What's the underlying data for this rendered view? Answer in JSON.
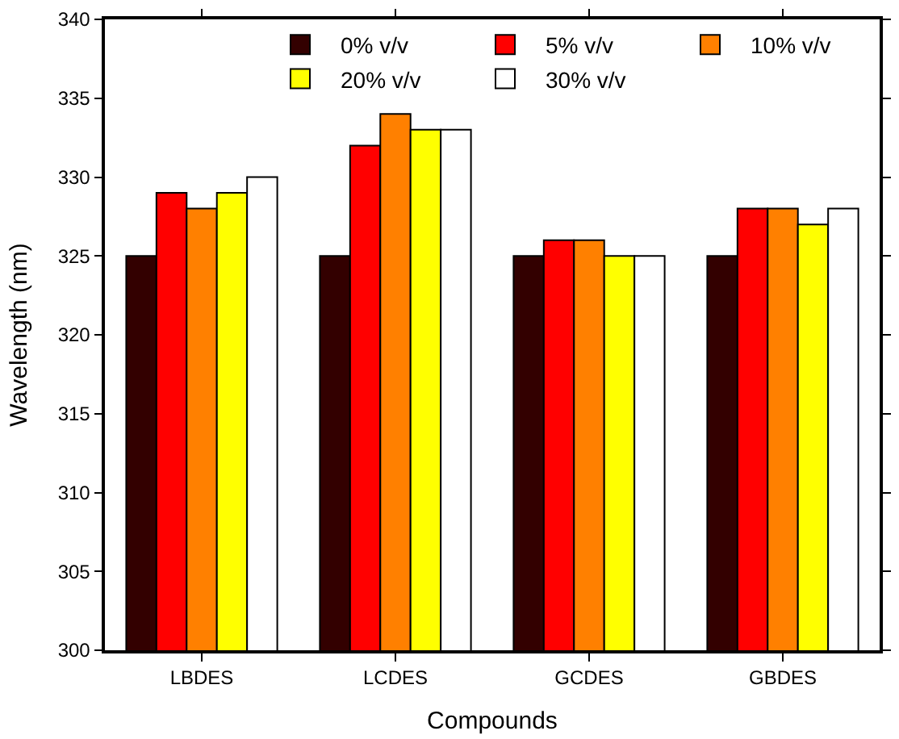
{
  "chart_data": {
    "type": "bar",
    "xlabel": "Compounds",
    "ylabel": "Wavelength (nm)",
    "categories": [
      "LBDES",
      "LCDES",
      "GCDES",
      "GBDES"
    ],
    "series": [
      {
        "name": "0% v/v",
        "color": "#330000",
        "values": [
          325,
          325,
          325,
          325
        ]
      },
      {
        "name": "5% v/v",
        "color": "#ff0000",
        "values": [
          329,
          332,
          326,
          328
        ]
      },
      {
        "name": "10% v/v",
        "color": "#ff8000",
        "values": [
          328,
          334,
          326,
          328
        ]
      },
      {
        "name": "20% v/v",
        "color": "#ffff00",
        "values": [
          329,
          333,
          325,
          327
        ]
      },
      {
        "name": "30% v/v",
        "color": "#ffffff",
        "values": [
          330,
          333,
          325,
          328
        ]
      }
    ],
    "ylim": [
      300,
      340
    ],
    "yticks": [
      300,
      305,
      310,
      315,
      320,
      325,
      330,
      335,
      340
    ],
    "legend": "top"
  }
}
